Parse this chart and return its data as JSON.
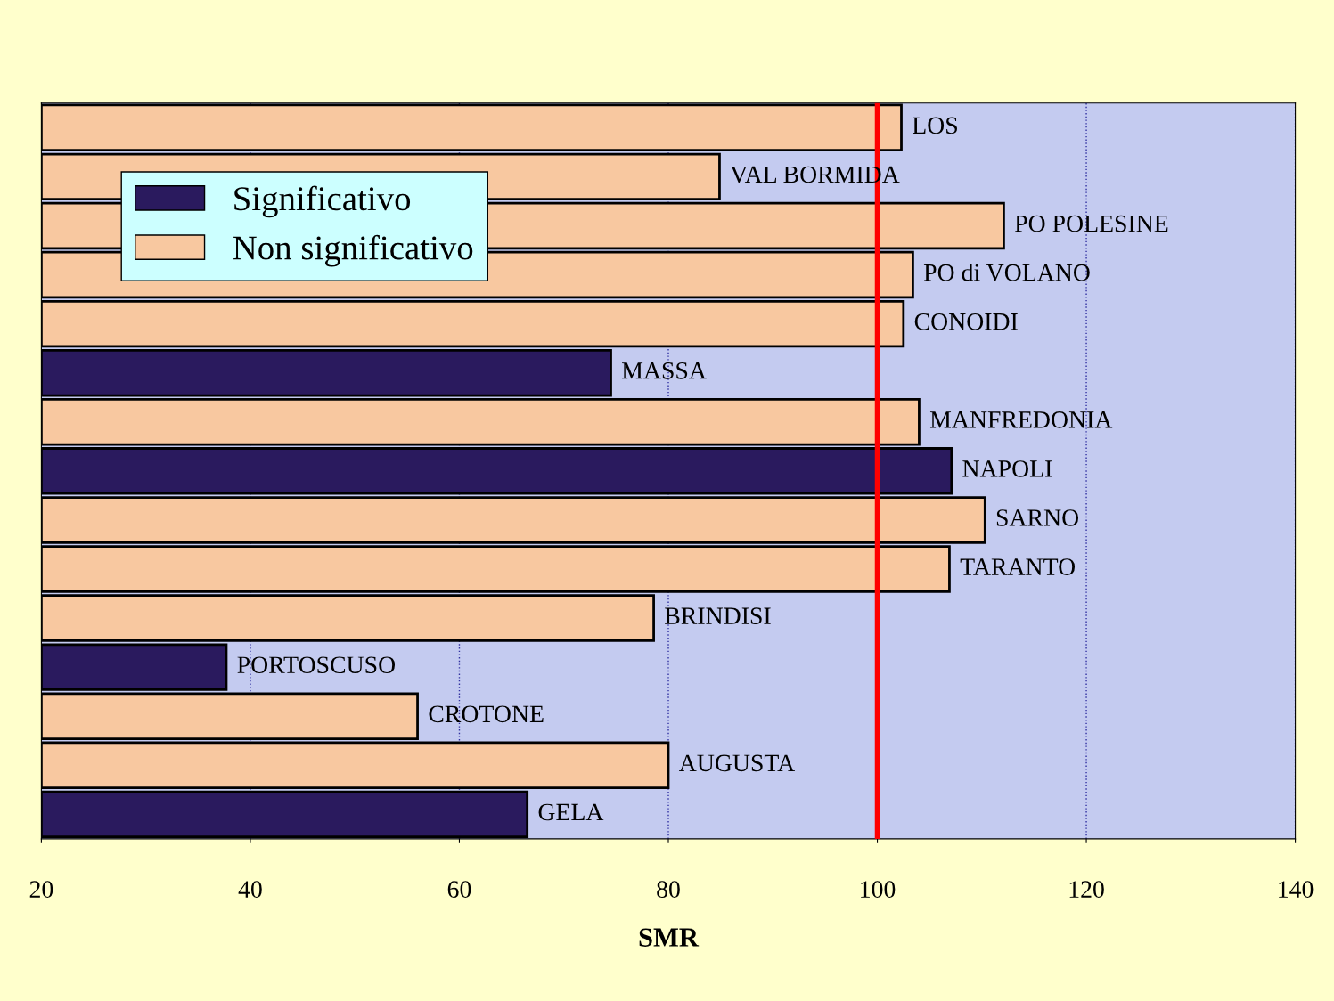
{
  "chart_data": {
    "type": "bar",
    "orientation": "horizontal",
    "xlabel": "SMR",
    "categories": [
      "LOS",
      "VAL BORMIDA",
      "PO POLESINE",
      "PO di VOLANO",
      "CONOIDI",
      "MASSA",
      "MANFREDONIA",
      "NAPOLI",
      "SARNO",
      "TARANTO",
      "BRINDISI",
      "PORTOSCUSO",
      "CROTONE",
      "AUGUSTA",
      "GELA"
    ],
    "series": [
      {
        "name": "Significativo",
        "color": "#2a1a5e",
        "values": [
          null,
          null,
          null,
          null,
          null,
          74.5,
          null,
          107.1,
          null,
          null,
          null,
          37.7,
          null,
          null,
          66.5
        ]
      },
      {
        "name": "Non significativo",
        "color": "#f8c8a0",
        "values": [
          102.3,
          84.9,
          112.1,
          103.4,
          102.5,
          null,
          104.0,
          null,
          110.3,
          106.9,
          78.6,
          null,
          56.0,
          80.0,
          null
        ]
      }
    ],
    "xlim": [
      20,
      140
    ],
    "xticks": [
      20,
      40,
      60,
      80,
      100,
      120,
      140
    ],
    "ref_lines": [
      {
        "axis": "x",
        "value": 100,
        "color": "#ff0000"
      }
    ],
    "grid": "x",
    "legend": "top left",
    "tick_labels": "x"
  }
}
